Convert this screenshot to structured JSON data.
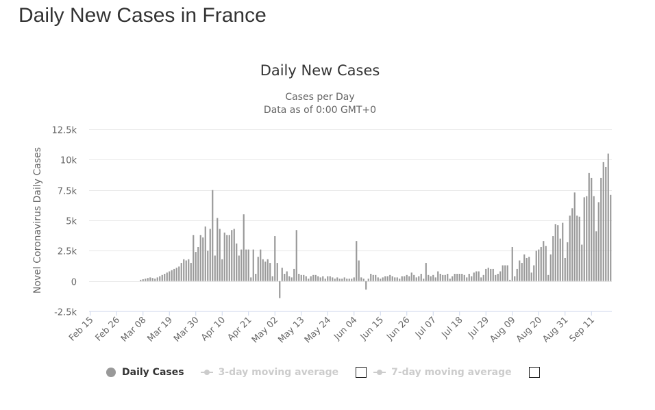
{
  "page": {
    "title": "Daily New Cases in France"
  },
  "chart_data": {
    "type": "bar",
    "title": "Daily New Cases",
    "subtitle_lines": [
      "Cases per Day",
      "Data as of 0:00 GMT+0"
    ],
    "ylabel": "Novel Coronavirus Daily Cases",
    "xlabel": "",
    "ylim": [
      -2500,
      12500
    ],
    "ytick_values": [
      -2500,
      0,
      2500,
      5000,
      7500,
      10000,
      12500
    ],
    "ytick_labels": [
      "-2.5k",
      "0",
      "2.5k",
      "5k",
      "7.5k",
      "10k",
      "12.5k"
    ],
    "xtick_labels": [
      "Feb 15",
      "Feb 26",
      "Mar 08",
      "Mar 19",
      "Mar 30",
      "Apr 10",
      "Apr 21",
      "May 02",
      "May 13",
      "May 24",
      "Jun 04",
      "Jun 15",
      "Jun 26",
      "Jul 07",
      "Jul 18",
      "Jul 29",
      "Aug 09",
      "Aug 20",
      "Aug 31",
      "Sep 11"
    ],
    "xtick_every_days": 11,
    "start_date": "Feb 15",
    "color": "#999999",
    "grid": true,
    "legend_position": "bottom",
    "series": [
      {
        "name": "Daily Cases",
        "visible": true,
        "values": [
          0,
          0,
          0,
          0,
          0,
          0,
          0,
          0,
          0,
          0,
          0,
          0,
          0,
          0,
          0,
          0,
          0,
          0,
          0,
          0,
          0,
          100,
          150,
          200,
          250,
          300,
          250,
          200,
          300,
          400,
          500,
          600,
          700,
          800,
          900,
          1000,
          1100,
          1200,
          1500,
          1800,
          1700,
          1800,
          1500,
          3800,
          2400,
          2800,
          3800,
          3600,
          4500,
          2500,
          4300,
          7500,
          2100,
          5200,
          4300,
          1800,
          4000,
          3800,
          3800,
          4200,
          4300,
          3100,
          2100,
          2600,
          5500,
          2600,
          2600,
          300,
          2600,
          600,
          2000,
          2600,
          1800,
          1600,
          1800,
          1500,
          400,
          3700,
          1500,
          -1400,
          1100,
          600,
          800,
          400,
          300,
          1000,
          4200,
          600,
          500,
          500,
          400,
          200,
          400,
          500,
          500,
          400,
          300,
          400,
          200,
          400,
          400,
          300,
          200,
          300,
          200,
          200,
          300,
          200,
          200,
          200,
          300,
          3300,
          1700,
          300,
          200,
          -700,
          200,
          600,
          500,
          500,
          300,
          200,
          300,
          400,
          400,
          500,
          400,
          300,
          300,
          200,
          400,
          400,
          500,
          400,
          700,
          500,
          300,
          400,
          600,
          200,
          1500,
          500,
          400,
          500,
          300,
          800,
          600,
          500,
          500,
          600,
          200,
          400,
          600,
          600,
          600,
          600,
          500,
          300,
          600,
          400,
          700,
          800,
          800,
          300,
          500,
          1000,
          1100,
          1000,
          1000,
          500,
          600,
          800,
          1300,
          1300,
          1300,
          100,
          2800,
          400,
          1000,
          1700,
          1500,
          2200,
          1900,
          2000,
          700,
          1300,
          2500,
          2600,
          2800,
          3300,
          2900,
          500,
          2200,
          3700,
          4700,
          4600,
          3500,
          4800,
          1900,
          3200,
          5400,
          6000,
          7300,
          5400,
          5300,
          3000,
          6900,
          7000,
          8900,
          8500,
          7000,
          4100,
          6500,
          8500,
          9800,
          9400,
          10500,
          7100
        ]
      },
      {
        "name": "3-day moving average",
        "visible": false
      },
      {
        "name": "7-day moving average",
        "visible": false
      }
    ]
  }
}
